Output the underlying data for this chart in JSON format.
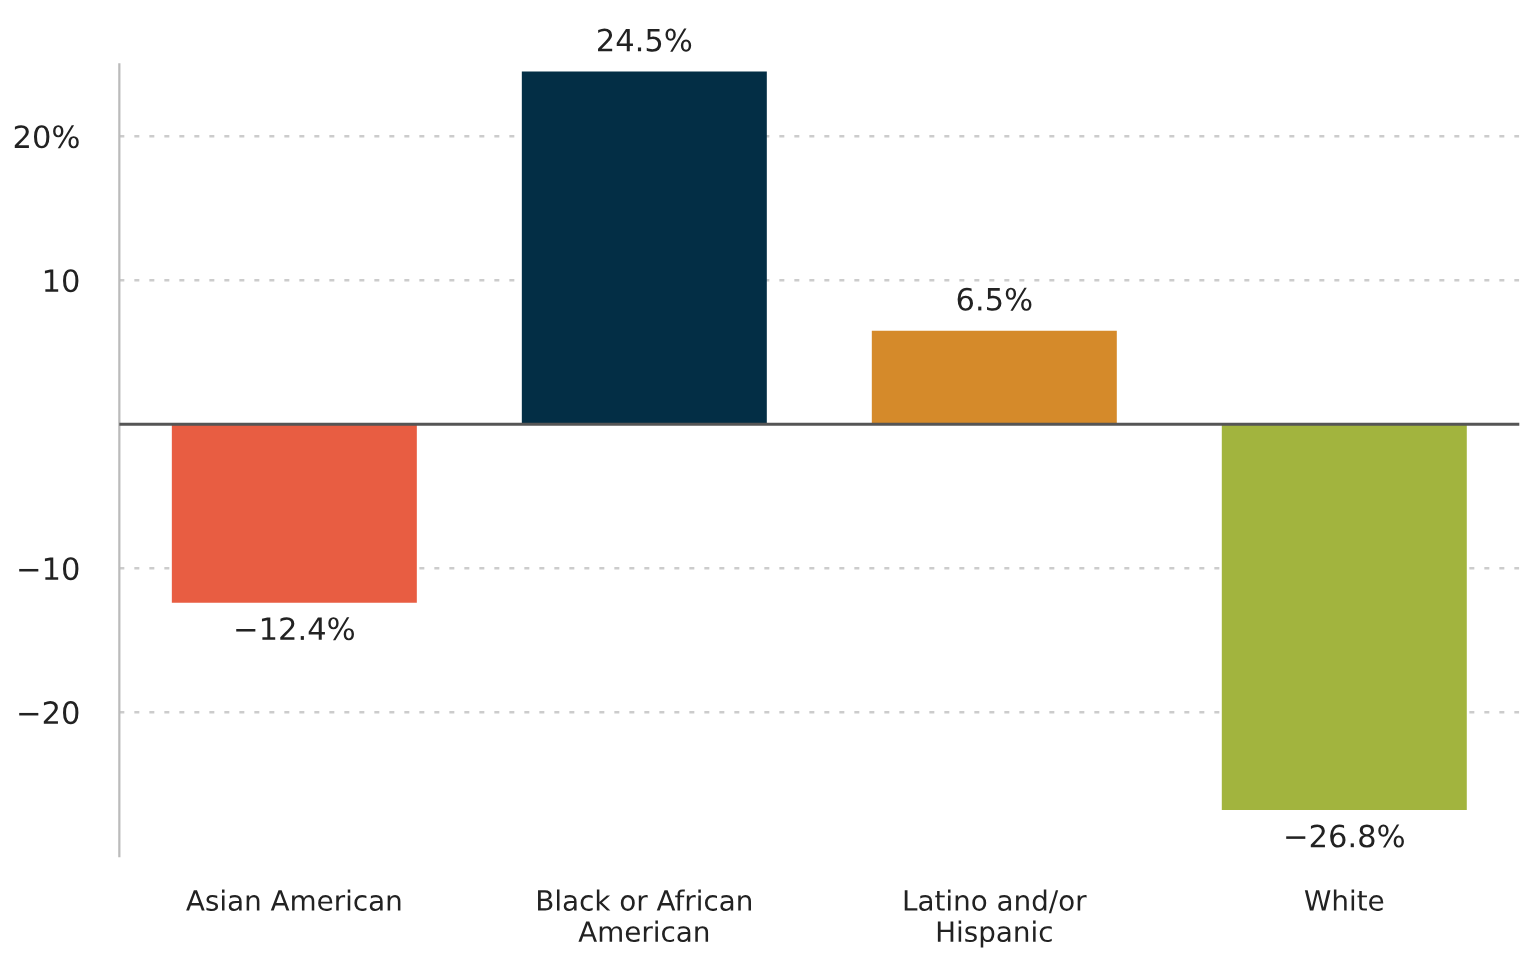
{
  "chart_data": {
    "type": "bar",
    "categories": [
      "Asian American",
      "Black or African\nAmerican",
      "Latino and/or\nHispanic",
      "White"
    ],
    "values": [
      -12.4,
      24.5,
      6.5,
      -26.8
    ],
    "colors": [
      "#e85d42",
      "#032e45",
      "#d58a2a",
      "#a2b43e"
    ],
    "value_labels": [
      "−12.4%",
      "24.5%",
      "6.5%",
      "−26.8%"
    ],
    "ylim": [
      -30,
      25
    ],
    "yticks": [
      {
        "value": 20,
        "label": "20%"
      },
      10,
      {
        "value": 0,
        "label": null
      },
      {
        "value": -10,
        "label": "−10"
      },
      {
        "value": -20,
        "label": "−20"
      }
    ],
    "ref_lines": [
      {
        "axis": "y",
        "value": 0,
        "color": "#555555"
      }
    ],
    "grid": "y"
  }
}
